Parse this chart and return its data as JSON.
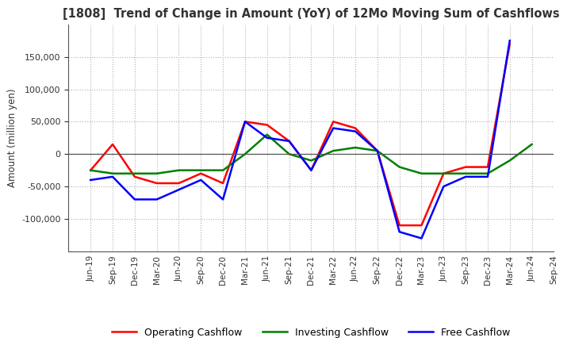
{
  "title": "[1808]  Trend of Change in Amount (YoY) of 12Mo Moving Sum of Cashflows",
  "ylabel": "Amount (million yen)",
  "x_labels": [
    "Jun-19",
    "Sep-19",
    "Dec-19",
    "Mar-20",
    "Jun-20",
    "Sep-20",
    "Dec-20",
    "Mar-21",
    "Jun-21",
    "Sep-21",
    "Dec-21",
    "Mar-22",
    "Jun-22",
    "Sep-22",
    "Dec-22",
    "Mar-23",
    "Jun-23",
    "Sep-23",
    "Dec-23",
    "Mar-24",
    "Jun-24",
    "Sep-24"
  ],
  "operating": [
    -25000,
    15000,
    -35000,
    -45000,
    -45000,
    -30000,
    -45000,
    50000,
    45000,
    20000,
    -25000,
    50000,
    40000,
    5000,
    -110000,
    -110000,
    -30000,
    -20000,
    -20000,
    170000,
    null,
    null
  ],
  "investing": [
    -25000,
    -30000,
    -30000,
    -30000,
    -25000,
    -25000,
    -25000,
    0,
    30000,
    0,
    -10000,
    5000,
    10000,
    5000,
    -20000,
    -30000,
    -30000,
    -30000,
    -30000,
    -10000,
    15000,
    null
  ],
  "free": [
    -40000,
    -35000,
    -70000,
    -70000,
    -55000,
    -40000,
    -70000,
    50000,
    25000,
    20000,
    -25000,
    40000,
    35000,
    5000,
    -120000,
    -130000,
    -50000,
    -35000,
    -35000,
    175000,
    null,
    null
  ],
  "operating_color": "#ff0000",
  "investing_color": "#008000",
  "free_color": "#0000ff",
  "ylim": [
    -150000,
    200000
  ],
  "yticks": [
    -100000,
    -50000,
    0,
    50000,
    100000,
    150000
  ],
  "background": "#ffffff",
  "grid_color": "#b0b0b0"
}
